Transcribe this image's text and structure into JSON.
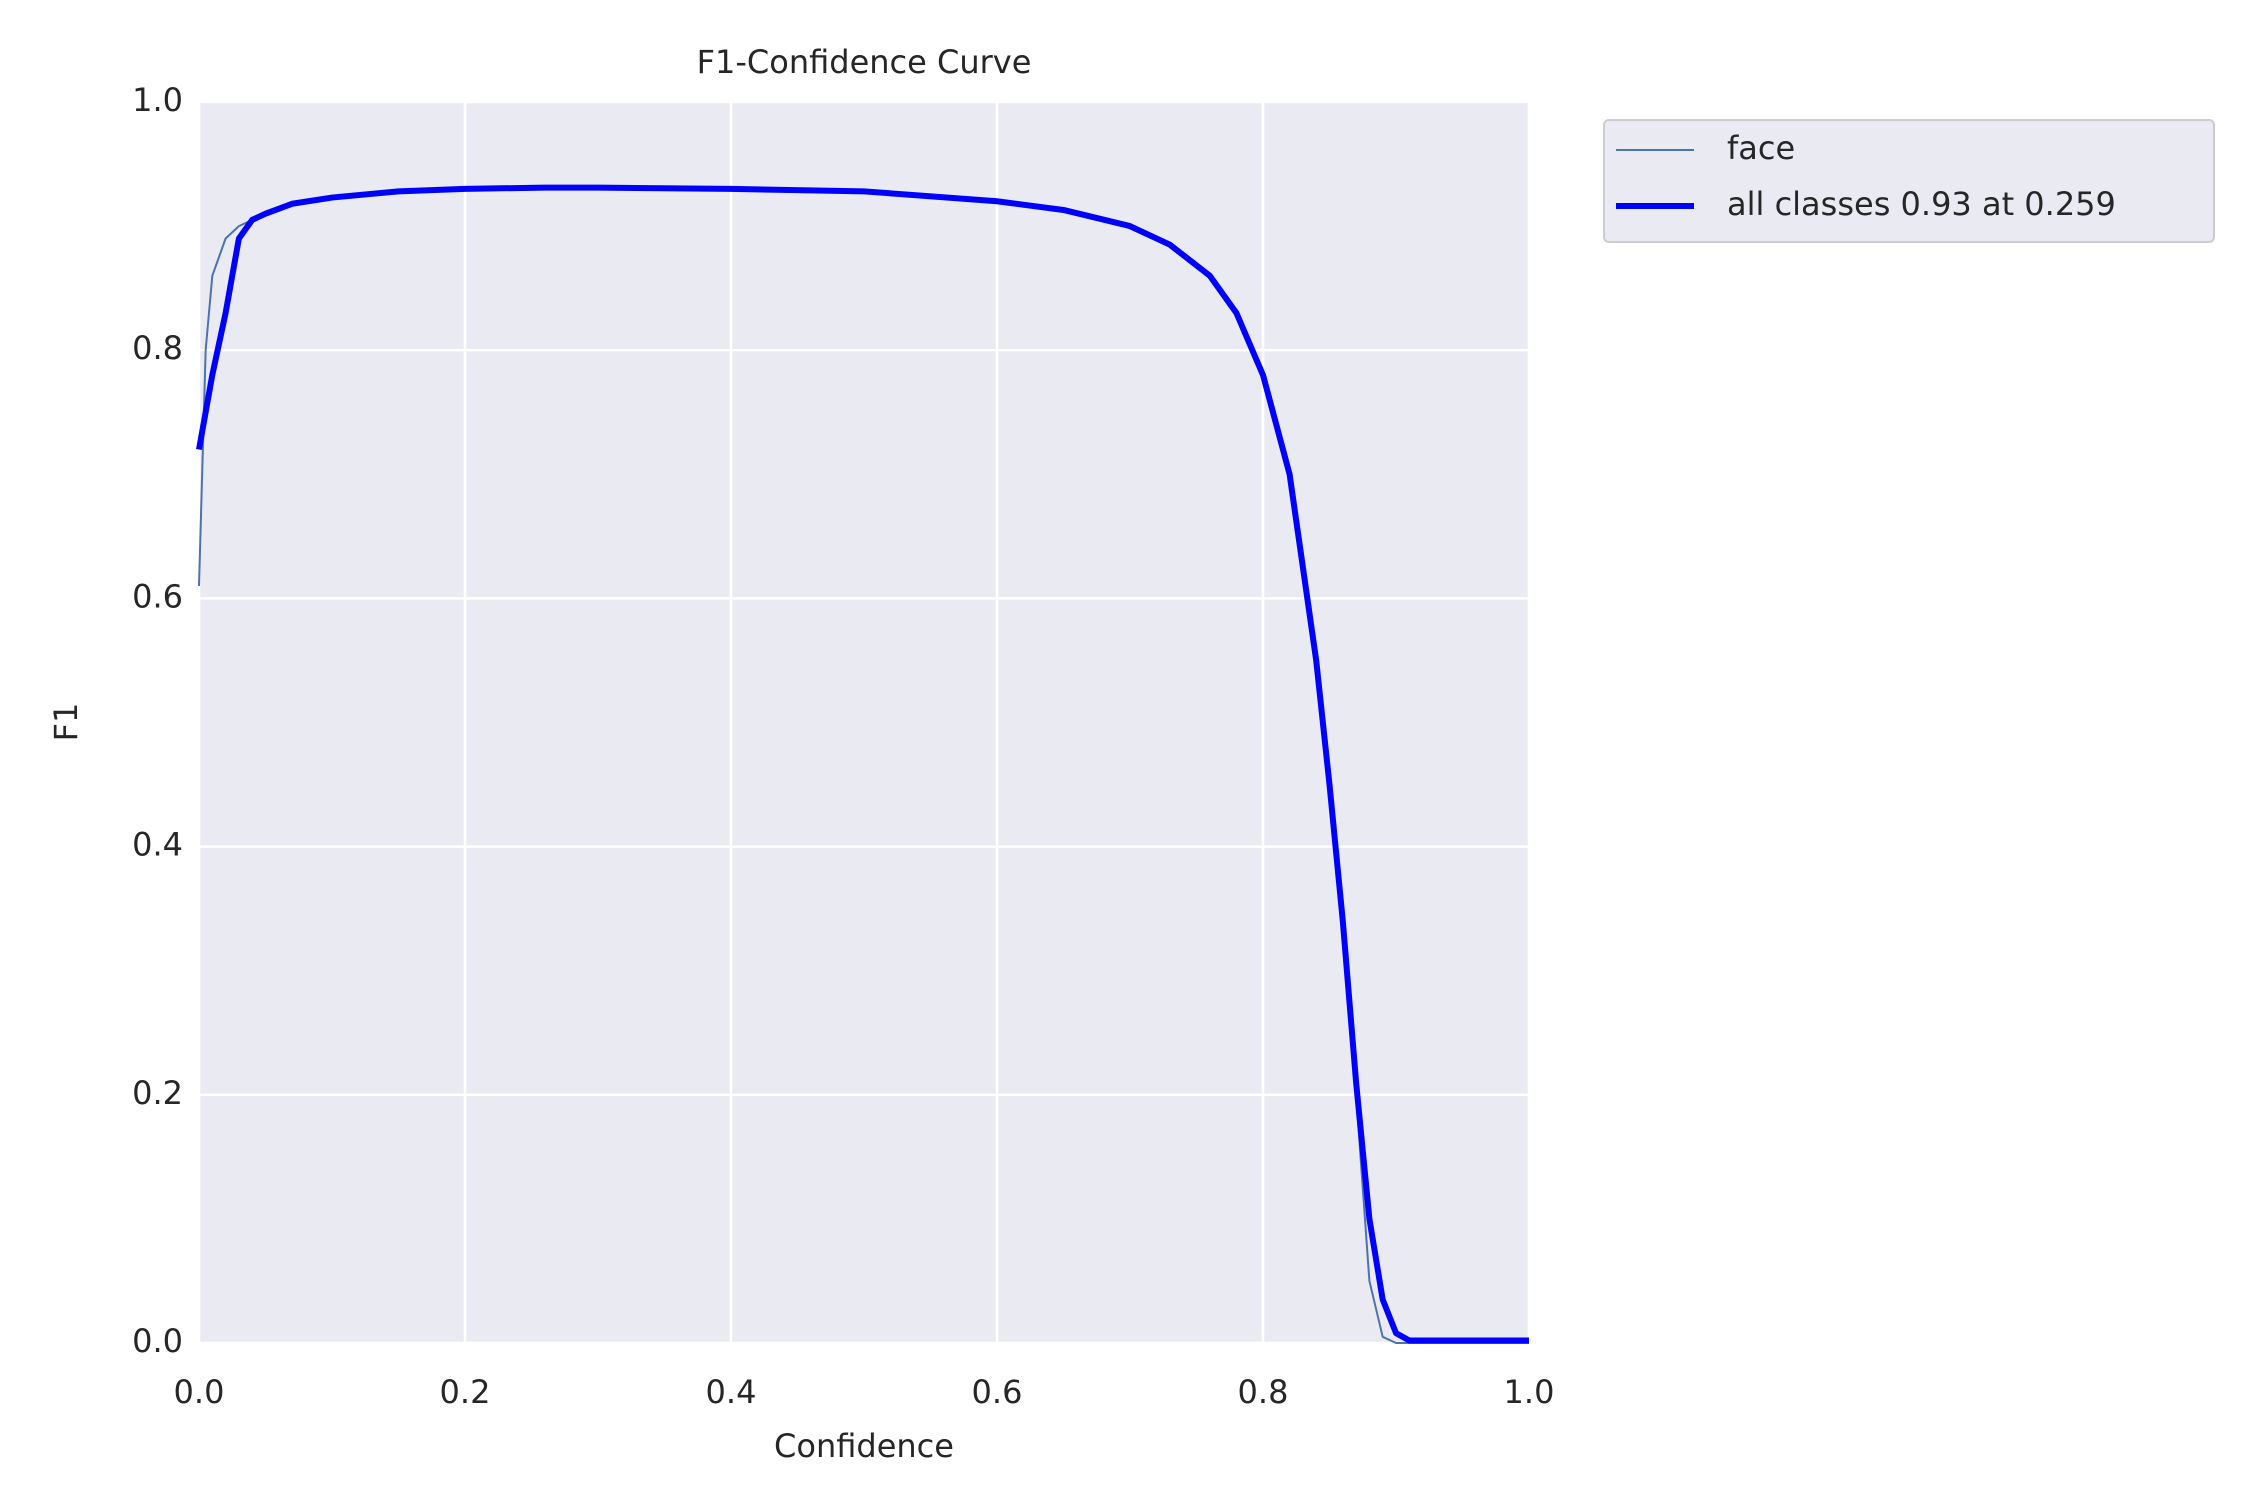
{
  "chart_data": {
    "type": "line",
    "title": "F1-Confidence Curve",
    "x_label": "Confidence",
    "y_label": "F1",
    "x": [
      0,
      0.005,
      0.01,
      0.02,
      0.03,
      0.04,
      0.05,
      0.07,
      0.1,
      0.15,
      0.2,
      0.26,
      0.3,
      0.4,
      0.5,
      0.6,
      0.65,
      0.7,
      0.73,
      0.76,
      0.78,
      0.8,
      0.82,
      0.84,
      0.85,
      0.86,
      0.87,
      0.88,
      0.89,
      0.9,
      0.91,
      0.95,
      1.0
    ],
    "series": [
      {
        "name": "face",
        "color": "#4c72b0",
        "width": 2,
        "values": [
          0.61,
          0.8,
          0.86,
          0.89,
          0.9,
          0.905,
          0.91,
          0.918,
          0.923,
          0.928,
          0.93,
          0.931,
          0.931,
          0.93,
          0.928,
          0.92,
          0.913,
          0.9,
          0.885,
          0.86,
          0.83,
          0.78,
          0.7,
          0.55,
          0.45,
          0.33,
          0.2,
          0.05,
          0.005,
          0,
          0,
          0,
          0
        ]
      },
      {
        "name": "all classes 0.93 at 0.259",
        "color": "#0000ff",
        "width": 6,
        "values": [
          0.72,
          0.75,
          0.78,
          0.83,
          0.89,
          0.905,
          0.91,
          0.918,
          0.923,
          0.928,
          0.93,
          0.931,
          0.931,
          0.93,
          0.928,
          0.92,
          0.913,
          0.9,
          0.885,
          0.86,
          0.83,
          0.78,
          0.7,
          0.55,
          0.45,
          0.34,
          0.21,
          0.1,
          0.035,
          0.008,
          0.002,
          0.002,
          0.002
        ]
      }
    ],
    "xlim": [
      0,
      1
    ],
    "ylim": [
      0,
      1
    ],
    "xticks": [
      {
        "value": 0,
        "label": "0.0"
      },
      0.2,
      0.4,
      0.6,
      0.8,
      {
        "value": 1,
        "label": "1.0"
      }
    ],
    "yticks": [
      {
        "value": 0,
        "label": "0.0"
      },
      0.2,
      0.4,
      0.6,
      0.8,
      {
        "value": 1,
        "label": "1.0"
      }
    ],
    "grid": true,
    "legend": "outside upper right"
  }
}
